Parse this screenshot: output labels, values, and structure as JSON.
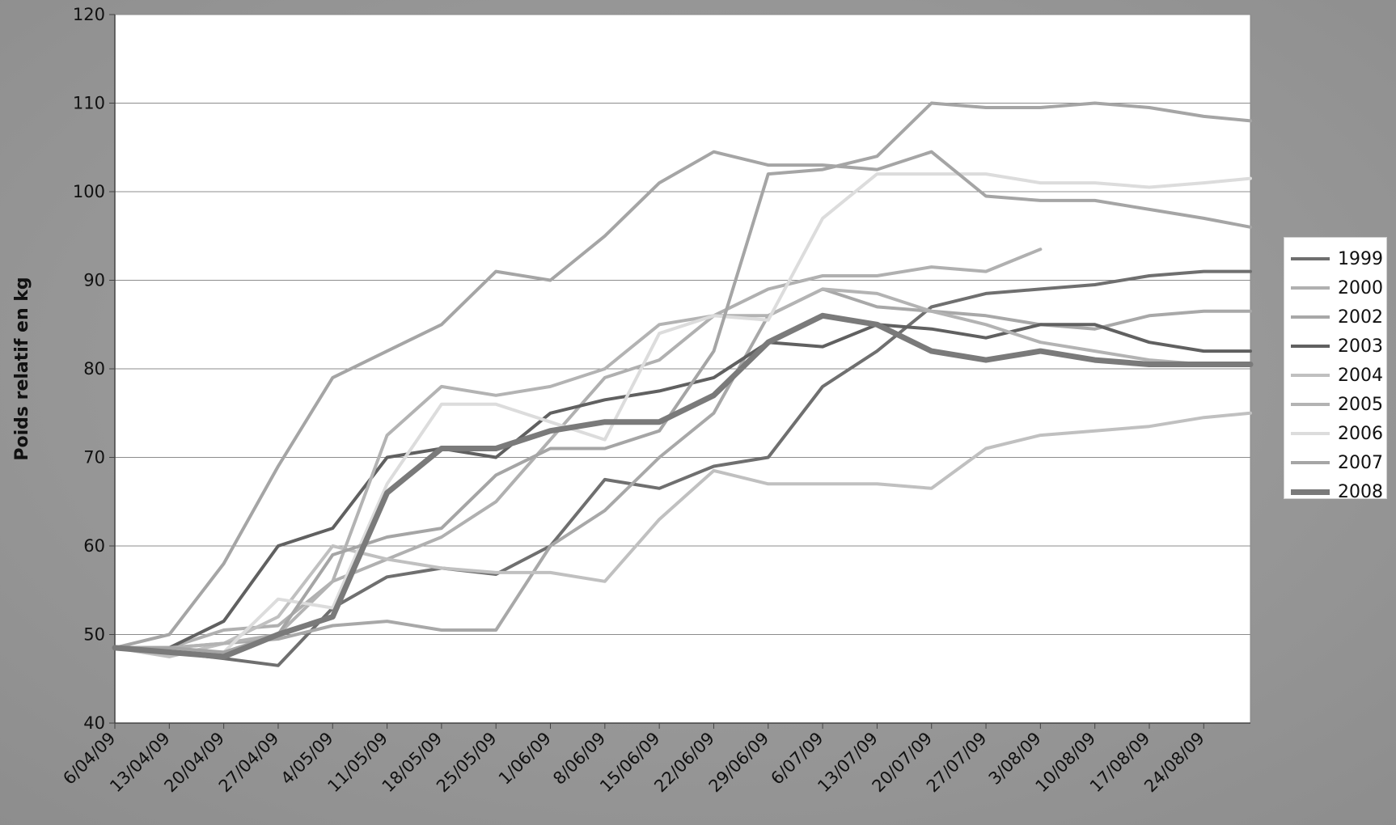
{
  "chart_data": {
    "type": "line",
    "ylabel": "Poids relatif en kg",
    "xlabel": "",
    "ylim": [
      40,
      120
    ],
    "yticks": [
      40,
      50,
      60,
      70,
      80,
      90,
      100,
      110,
      120
    ],
    "xstart": "6/04/09",
    "xend": "30/08/09",
    "xtick_labels": [
      "6/04/09",
      "13/04/09",
      "20/04/09",
      "27/04/09",
      "4/05/09",
      "11/05/09",
      "18/05/09",
      "25/05/09",
      "1/06/09",
      "8/06/09",
      "15/06/09",
      "22/06/09",
      "29/06/09",
      "6/07/09",
      "13/07/09",
      "20/07/09",
      "27/07/09",
      "3/08/09",
      "10/08/09",
      "17/08/09",
      "24/08/09"
    ],
    "grid": "horizontal",
    "legend_position": "right",
    "series": [
      {
        "name": "1999",
        "color": "#6f6f6f",
        "width": 4,
        "x": [
          "6/04/09",
          "13/04/09",
          "20/04/09",
          "27/04/09",
          "4/05/09",
          "11/05/09",
          "18/05/09",
          "25/05/09",
          "1/06/09",
          "8/06/09",
          "15/06/09",
          "22/06/09",
          "29/06/09",
          "6/07/09",
          "13/07/09",
          "20/07/09",
          "27/07/09",
          "3/08/09",
          "10/08/09",
          "17/08/09",
          "24/08/09",
          "30/08/09"
        ],
        "y": [
          48.5,
          48,
          47.3,
          46.5,
          53,
          56.5,
          57.5,
          56.8,
          60,
          67.5,
          66.5,
          69,
          70,
          78,
          82,
          87,
          88.5,
          89,
          89.5,
          90.5,
          91,
          91
        ]
      },
      {
        "name": "2000",
        "color": "#b0b0b0",
        "width": 4,
        "x": [
          "6/04/09",
          "13/04/09",
          "20/04/09",
          "27/04/09",
          "4/05/09",
          "11/05/09",
          "18/05/09",
          "25/05/09",
          "1/06/09",
          "8/06/09",
          "15/06/09",
          "22/06/09",
          "29/06/09",
          "6/07/09",
          "13/07/09",
          "20/07/09",
          "27/07/09",
          "3/08/09"
        ],
        "y": [
          48.5,
          48.5,
          50.5,
          51,
          56,
          58.5,
          61,
          65,
          72,
          79,
          81,
          86,
          89,
          90.5,
          90.5,
          91.5,
          91,
          93.5
        ]
      },
      {
        "name": "2002",
        "color": "#a8a8a8",
        "width": 4,
        "x": [
          "6/04/09",
          "13/04/09",
          "20/04/09",
          "27/04/09",
          "4/05/09",
          "11/05/09",
          "18/05/09",
          "25/05/09",
          "1/06/09",
          "8/06/09",
          "15/06/09",
          "22/06/09",
          "29/06/09",
          "6/07/09",
          "13/07/09",
          "20/07/09",
          "27/07/09",
          "3/08/09",
          "10/08/09",
          "17/08/09",
          "24/08/09",
          "30/08/09"
        ],
        "y": [
          48.5,
          48.5,
          49,
          49.5,
          51,
          51.5,
          50.5,
          50.5,
          60,
          64,
          70,
          75,
          86,
          89,
          87,
          86.5,
          86,
          85,
          84.5,
          86,
          86.5,
          86.5
        ]
      },
      {
        "name": "2003",
        "color": "#606060",
        "width": 4,
        "x": [
          "6/04/09",
          "13/04/09",
          "20/04/09",
          "27/04/09",
          "4/05/09",
          "11/05/09",
          "18/05/09",
          "25/05/09",
          "1/06/09",
          "8/06/09",
          "15/06/09",
          "22/06/09",
          "29/06/09",
          "6/07/09",
          "13/07/09",
          "20/07/09",
          "27/07/09",
          "3/08/09",
          "10/08/09",
          "17/08/09",
          "24/08/09",
          "30/08/09"
        ],
        "y": [
          48.5,
          48.5,
          51.5,
          60,
          62,
          70,
          71,
          70,
          75,
          76.5,
          77.5,
          79,
          83,
          82.5,
          85,
          84.5,
          83.5,
          85,
          85,
          83,
          82,
          82
        ]
      },
      {
        "name": "2004",
        "color": "#c0c0c0",
        "width": 4,
        "x": [
          "6/04/09",
          "13/04/09",
          "20/04/09",
          "27/04/09",
          "4/05/09",
          "11/05/09",
          "18/05/09",
          "25/05/09",
          "1/06/09",
          "8/06/09",
          "15/06/09",
          "22/06/09",
          "29/06/09",
          "6/07/09",
          "13/07/09",
          "20/07/09",
          "27/07/09",
          "3/08/09",
          "10/08/09",
          "17/08/09",
          "24/08/09",
          "30/08/09"
        ],
        "y": [
          48.5,
          47.5,
          49,
          52,
          60,
          58.5,
          57.5,
          57,
          57,
          56,
          63,
          68.5,
          67,
          67,
          67,
          66.5,
          71,
          72.5,
          73,
          73.5,
          74.5,
          75
        ]
      },
      {
        "name": "2005",
        "color": "#b3b3b3",
        "width": 4,
        "x": [
          "6/04/09",
          "13/04/09",
          "20/04/09",
          "27/04/09",
          "4/05/09",
          "11/05/09",
          "18/05/09",
          "25/05/09",
          "1/06/09",
          "8/06/09",
          "15/06/09",
          "22/06/09",
          "29/06/09",
          "6/07/09",
          "13/07/09",
          "20/07/09",
          "27/07/09",
          "3/08/09",
          "10/08/09",
          "17/08/09",
          "24/08/09",
          "30/08/09"
        ],
        "y": [
          48.5,
          48.5,
          49,
          50,
          56,
          72.5,
          78,
          77,
          78,
          80,
          85,
          86,
          86,
          89,
          88.5,
          86.5,
          85,
          83,
          82,
          81,
          80.5,
          80.5
        ]
      },
      {
        "name": "2006",
        "color": "#dcdcdc",
        "width": 4,
        "x": [
          "6/04/09",
          "13/04/09",
          "20/04/09",
          "27/04/09",
          "4/05/09",
          "11/05/09",
          "18/05/09",
          "25/05/09",
          "1/06/09",
          "8/06/09",
          "15/06/09",
          "22/06/09",
          "29/06/09",
          "6/07/09",
          "13/07/09",
          "20/07/09",
          "27/07/09",
          "3/08/09",
          "10/08/09",
          "17/08/09",
          "24/08/09",
          "30/08/09"
        ],
        "y": [
          48.5,
          48,
          48,
          54,
          53,
          67,
          76,
          76,
          74,
          72,
          84,
          86,
          85.5,
          97,
          102,
          102,
          102,
          101,
          101,
          100.5,
          101,
          101.5
        ]
      },
      {
        "name": "2007",
        "color": "#a5a5a5",
        "width": 4,
        "x": [
          "6/04/09",
          "13/04/09",
          "20/04/09",
          "27/04/09",
          "4/05/09",
          "11/05/09",
          "18/05/09",
          "25/05/09",
          "1/06/09",
          "8/06/09",
          "15/06/09",
          "22/06/09",
          "29/06/09",
          "6/07/09",
          "13/07/09",
          "20/07/09",
          "27/07/09",
          "3/08/09",
          "10/08/09",
          "17/08/09",
          "24/08/09",
          "30/08/09"
        ],
        "y": [
          48.5,
          50,
          58,
          69,
          79,
          82,
          85,
          91,
          90,
          95,
          101,
          104.5,
          103,
          103,
          102.5,
          104.5,
          99.5,
          99,
          99,
          98,
          97,
          96
        ]
      },
      {
        "name": "2007",
        "color": "#a5a5a5",
        "width": 4,
        "x": [
          "6/04/09",
          "13/04/09",
          "20/04/09",
          "27/04/09",
          "4/05/09",
          "11/05/09",
          "18/05/09",
          "25/05/09",
          "1/06/09",
          "8/06/09",
          "15/06/09",
          "22/06/09",
          "29/06/09",
          "6/07/09",
          "13/07/09",
          "20/07/09",
          "27/07/09",
          "3/08/09",
          "10/08/09",
          "17/08/09",
          "24/08/09",
          "30/08/09"
        ],
        "y": [
          48.5,
          48.5,
          48,
          50,
          59,
          61,
          62,
          68,
          71,
          71,
          73,
          82,
          102,
          102.5,
          104,
          110,
          109.5,
          109.5,
          110,
          109.5,
          108.5,
          108
        ]
      },
      {
        "name": "2008",
        "color": "#7a7a7a",
        "width": 7,
        "x": [
          "6/04/09",
          "13/04/09",
          "20/04/09",
          "27/04/09",
          "4/05/09",
          "11/05/09",
          "18/05/09",
          "25/05/09",
          "1/06/09",
          "8/06/09",
          "15/06/09",
          "22/06/09",
          "29/06/09",
          "6/07/09",
          "13/07/09",
          "20/07/09",
          "27/07/09",
          "3/08/09",
          "10/08/09",
          "17/08/09",
          "24/08/09",
          "30/08/09"
        ],
        "y": [
          48.5,
          48,
          47.5,
          50,
          52,
          66,
          71,
          71,
          73,
          74,
          74,
          77,
          83,
          86,
          85,
          82,
          81,
          82,
          81,
          80.5,
          80.5,
          80.5
        ]
      }
    ]
  }
}
